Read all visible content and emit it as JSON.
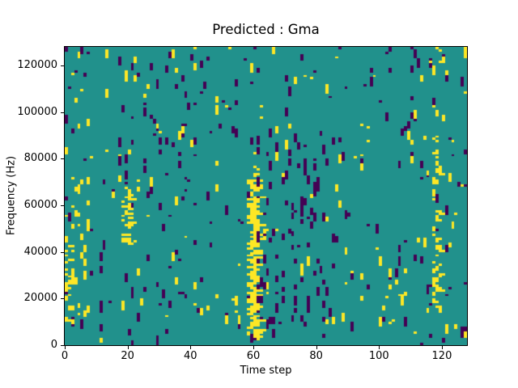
{
  "figure": {
    "title": "Predicted : Gma",
    "xlabel": "Time step",
    "ylabel": "Frequency (Hz)"
  },
  "chart_data": {
    "type": "heatmap",
    "title": "Predicted : Gma",
    "xlabel": "Time step",
    "ylabel": "Frequency (Hz)",
    "x_range": [
      0,
      128
    ],
    "y_range_hz": [
      0,
      128000
    ],
    "grid": {
      "cols": 128,
      "rows": 128,
      "hz_per_row": 1000
    },
    "x_ticks": [
      0,
      20,
      40,
      60,
      80,
      100,
      120
    ],
    "y_ticks": [
      0,
      20000,
      40000,
      60000,
      80000,
      100000,
      120000
    ],
    "legend_position": "none",
    "grid_lines": false,
    "colors": {
      "low": "#440154",
      "mid": "#21918c",
      "high": "#fde725"
    },
    "background_value": "mid",
    "noise": {
      "seed": 11,
      "scatter": [
        {
          "name": "global-purple-scatter",
          "color": "low",
          "count": 210,
          "cols": [
            0,
            128
          ],
          "freq": [
            0,
            128000
          ],
          "run": [
            1,
            4
          ]
        },
        {
          "name": "global-yellow-scatter",
          "color": "high",
          "count": 150,
          "cols": [
            0,
            128
          ],
          "freq": [
            0,
            128000
          ],
          "run": [
            1,
            4
          ]
        },
        {
          "name": "dense-purple-mid-right",
          "color": "low",
          "count": 85,
          "cols": [
            60,
            84
          ],
          "freq": [
            0,
            92000
          ],
          "run": [
            1,
            4
          ]
        },
        {
          "name": "purple-cols-24-40",
          "color": "low",
          "count": 30,
          "cols": [
            24,
            42
          ],
          "freq": [
            15000,
            126000
          ],
          "run": [
            1,
            3
          ]
        },
        {
          "name": "left-edge-yellow-extra",
          "color": "high",
          "count": 25,
          "cols": [
            0,
            8
          ],
          "freq": [
            8000,
            72000
          ],
          "run": [
            1,
            3
          ]
        },
        {
          "name": "right-low-yellow-specks",
          "color": "high",
          "count": 10,
          "cols": [
            100,
            112
          ],
          "freq": [
            8000,
            30000
          ],
          "run": [
            1,
            3
          ]
        }
      ],
      "features": [
        {
          "name": "main-yellow-band-x60",
          "color": "high",
          "col": 59,
          "width_min": 2,
          "width_max": 4,
          "freq": [
            2000,
            70000
          ],
          "jitter": 1,
          "gap_p": 0.02
        },
        {
          "name": "main-band-upper-sparse",
          "color": "high",
          "col": 60,
          "width_min": 1,
          "width_max": 2,
          "freq": [
            70000,
            88000
          ],
          "jitter": 1,
          "gap_p": 0.55
        },
        {
          "name": "right-yellow-band-x119",
          "color": "high",
          "col": 118,
          "width_min": 1,
          "width_max": 2,
          "freq": [
            13000,
            84000
          ],
          "jitter": 1,
          "gap_p": 0.3
        },
        {
          "name": "right-band-upper-sparse",
          "color": "high",
          "col": 118,
          "width_min": 1,
          "width_max": 1,
          "freq": [
            86000,
            122000
          ],
          "jitter": 1,
          "gap_p": 0.72
        },
        {
          "name": "yellow-blob-x20",
          "color": "high",
          "col": 19,
          "width_min": 1,
          "width_max": 3,
          "freq": [
            43000,
            67000
          ],
          "jitter": 1,
          "gap_p": 0.15
        },
        {
          "name": "left-edge-squiggle",
          "color": "high",
          "col": 0,
          "width_min": 1,
          "width_max": 2,
          "freq": [
            8000,
            42000
          ],
          "jitter": 1,
          "gap_p": 0.35
        },
        {
          "name": "top-right-corner-yellow",
          "color": "high",
          "col": 127,
          "width_min": 1,
          "width_max": 1,
          "freq": [
            123000,
            128000
          ],
          "jitter": 0,
          "gap_p": 0
        },
        {
          "name": "bottom-right-corner-purple",
          "color": "low",
          "col": 126,
          "width_min": 2,
          "width_max": 2,
          "freq": [
            3000,
            7000
          ],
          "jitter": 0,
          "gap_p": 0
        }
      ]
    }
  }
}
